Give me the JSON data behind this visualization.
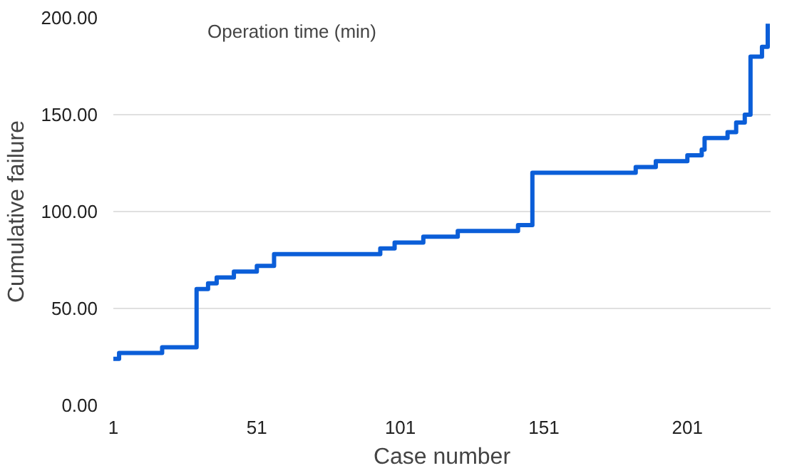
{
  "chart_data": {
    "type": "step",
    "xlabel": "Case number",
    "ylabel": "Cumulative failure",
    "annotations": [
      "Operation time (min)"
    ],
    "x": [
      1,
      3,
      18,
      30,
      34,
      37,
      43,
      51,
      57,
      94,
      99,
      109,
      121,
      142,
      147,
      183,
      190,
      201,
      206,
      207,
      215,
      218,
      221,
      223,
      227,
      229
    ],
    "series": [
      {
        "color": "#0b5ed8",
        "values": [
          24,
          27,
          30,
          60,
          63,
          66,
          69,
          72,
          78,
          81,
          84,
          87,
          90,
          93,
          120,
          123,
          126,
          129,
          132,
          138,
          141,
          146,
          150,
          180,
          185,
          197
        ]
      }
    ],
    "xlim": [
      1,
      230
    ],
    "ylim": [
      0,
      200
    ],
    "xticks": [
      1,
      51,
      101,
      151,
      201
    ],
    "yticks": [
      {
        "value": 0,
        "label": "0.00"
      },
      {
        "value": 50,
        "label": "50.00"
      },
      {
        "value": 100,
        "label": "100.00"
      },
      {
        "value": 150,
        "label": "150.00"
      },
      {
        "value": 200,
        "label": "200.00"
      }
    ],
    "grid": "y"
  }
}
